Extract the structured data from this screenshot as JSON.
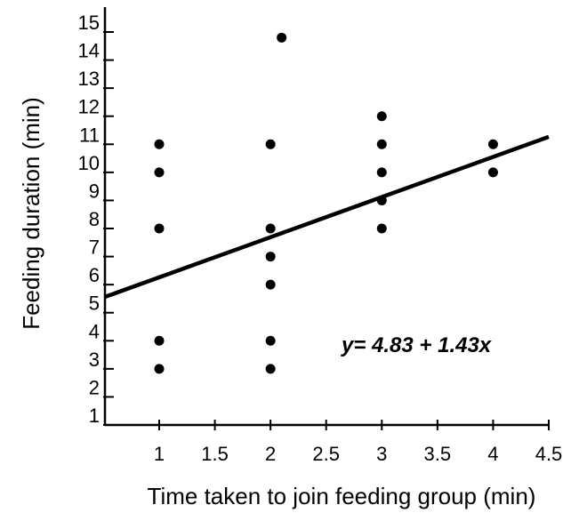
{
  "chart_data": {
    "type": "scatter",
    "title": "",
    "xlabel": "Time taken to join feeding group (min)",
    "ylabel": "Feeding duration (min)",
    "xlim": [
      0.5,
      4.5
    ],
    "ylim": [
      1,
      15
    ],
    "x_ticks": [
      1,
      1.5,
      2,
      2.5,
      3,
      3.5,
      4,
      4.5
    ],
    "x_tick_labels": [
      "1",
      "1.5",
      "2",
      "2.5",
      "3",
      "3.5",
      "4",
      "4.5"
    ],
    "y_ticks": [
      1,
      2,
      3,
      4,
      5,
      6,
      7,
      8,
      9,
      10,
      11,
      12,
      13,
      14,
      15
    ],
    "y_tick_labels": [
      "1",
      "2",
      "3",
      "4",
      "5",
      "6",
      "7",
      "8",
      "9",
      "10",
      "11",
      "12",
      "13",
      "14",
      "15"
    ],
    "grid": false,
    "points": [
      {
        "x": 1,
        "y": 3
      },
      {
        "x": 1,
        "y": 4
      },
      {
        "x": 1,
        "y": 8
      },
      {
        "x": 1,
        "y": 10
      },
      {
        "x": 1,
        "y": 11
      },
      {
        "x": 2,
        "y": 3
      },
      {
        "x": 2,
        "y": 4
      },
      {
        "x": 2,
        "y": 6
      },
      {
        "x": 2,
        "y": 7
      },
      {
        "x": 2,
        "y": 8
      },
      {
        "x": 2,
        "y": 11
      },
      {
        "x": 2.1,
        "y": 14.8
      },
      {
        "x": 3,
        "y": 8
      },
      {
        "x": 3,
        "y": 9
      },
      {
        "x": 3,
        "y": 10
      },
      {
        "x": 3,
        "y": 11
      },
      {
        "x": 3,
        "y": 12
      },
      {
        "x": 4,
        "y": 10
      },
      {
        "x": 4,
        "y": 11
      }
    ],
    "trendline": {
      "intercept": 4.83,
      "slope": 1.43,
      "x_range": [
        0.5,
        4.5
      ]
    },
    "annotation": "y= 4.83 + 1.43x"
  }
}
